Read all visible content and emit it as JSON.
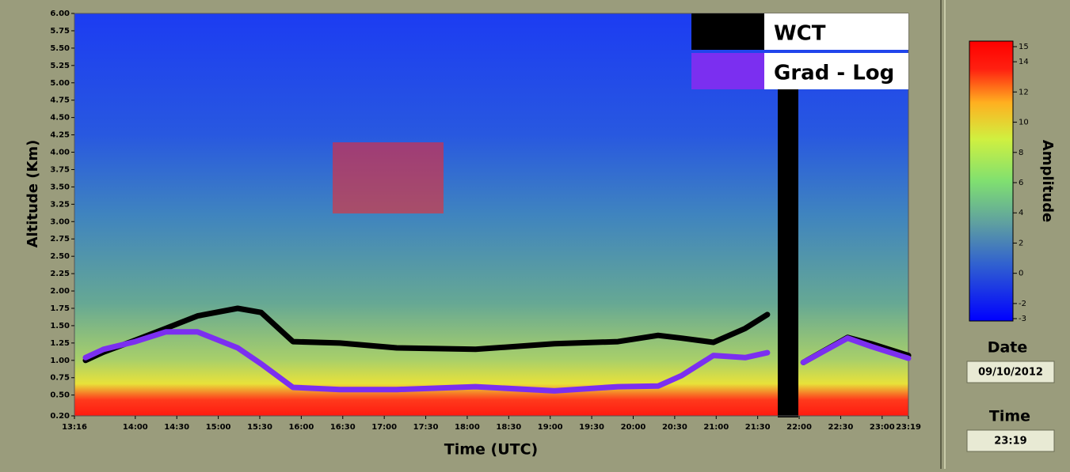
{
  "chart_data": {
    "type": "line",
    "xlabel": "Time (UTC)",
    "ylabel": "Altitude (Km)",
    "xlim": [
      796,
      1399
    ],
    "xticks": [
      {
        "value": 796,
        "label": "13:16"
      },
      {
        "value": 840,
        "label": "14:00"
      },
      {
        "value": 870,
        "label": "14:30"
      },
      {
        "value": 900,
        "label": "15:00"
      },
      {
        "value": 930,
        "label": "15:30"
      },
      {
        "value": 960,
        "label": "16:00"
      },
      {
        "value": 990,
        "label": "16:30"
      },
      {
        "value": 1020,
        "label": "17:00"
      },
      {
        "value": 1050,
        "label": "17:30"
      },
      {
        "value": 1080,
        "label": "18:00"
      },
      {
        "value": 1110,
        "label": "18:30"
      },
      {
        "value": 1140,
        "label": "19:00"
      },
      {
        "value": 1170,
        "label": "19:30"
      },
      {
        "value": 1200,
        "label": "20:00"
      },
      {
        "value": 1230,
        "label": "20:30"
      },
      {
        "value": 1260,
        "label": "21:00"
      },
      {
        "value": 1290,
        "label": "21:30"
      },
      {
        "value": 1320,
        "label": "22:00"
      },
      {
        "value": 1350,
        "label": "22:30"
      },
      {
        "value": 1380,
        "label": "23:00"
      },
      {
        "value": 1399,
        "label": "23:19"
      }
    ],
    "ylim": [
      0.2,
      6.0
    ],
    "yticks": [
      {
        "value": 0.2,
        "label": "0.20"
      },
      {
        "value": 0.5,
        "label": "0.50"
      },
      {
        "value": 0.75,
        "label": "0.75"
      },
      {
        "value": 1,
        "label": "1.00"
      },
      {
        "value": 1.25,
        "label": "1.25"
      },
      {
        "value": 1.5,
        "label": "1.50"
      },
      {
        "value": 1.75,
        "label": "1.75"
      },
      {
        "value": 2,
        "label": "2.00"
      },
      {
        "value": 2.25,
        "label": "2.25"
      },
      {
        "value": 2.5,
        "label": "2.50"
      },
      {
        "value": 2.75,
        "label": "2.75"
      },
      {
        "value": 3,
        "label": "3.00"
      },
      {
        "value": 3.25,
        "label": "3.25"
      },
      {
        "value": 3.5,
        "label": "3.50"
      },
      {
        "value": 3.75,
        "label": "3.75"
      },
      {
        "value": 4,
        "label": "4.00"
      },
      {
        "value": 4.25,
        "label": "4.25"
      },
      {
        "value": 4.5,
        "label": "4.50"
      },
      {
        "value": 4.75,
        "label": "4.75"
      },
      {
        "value": 5,
        "label": "5.00"
      },
      {
        "value": 5.25,
        "label": "5.25"
      },
      {
        "value": 5.5,
        "label": "5.50"
      },
      {
        "value": 5.75,
        "label": "5.75"
      },
      {
        "value": 6,
        "label": "6.00"
      }
    ],
    "x": [
      804,
      817,
      840,
      862,
      885,
      914,
      931,
      954,
      988,
      1029,
      1086,
      1143,
      1189,
      1218,
      1235,
      1258,
      1281,
      1297,
      1310,
      1323,
      1355,
      1372,
      1399
    ],
    "series": [
      {
        "name": "WCT",
        "color": "#000000",
        "values": [
          1.0,
          1.12,
          1.29,
          1.46,
          1.64,
          1.75,
          1.69,
          1.27,
          1.25,
          1.18,
          1.16,
          1.24,
          1.27,
          1.36,
          1.32,
          1.26,
          1.46,
          1.66,
          null,
          0.97,
          1.33,
          1.24,
          1.07
        ]
      },
      {
        "name": "Grad - Log",
        "color": "#7b2ff0",
        "values": [
          1.04,
          1.16,
          1.27,
          1.41,
          1.41,
          1.18,
          0.95,
          0.61,
          0.58,
          0.58,
          0.62,
          0.56,
          0.62,
          0.63,
          0.78,
          1.07,
          1.04,
          1.11,
          null,
          0.97,
          1.32,
          1.2,
          1.03
        ]
      }
    ],
    "colorbar": {
      "label": "Amplitude",
      "lim": [
        -3,
        15
      ],
      "ticks": [
        -3,
        -2,
        0,
        2,
        4,
        6,
        8,
        10,
        12,
        14,
        15
      ]
    }
  },
  "panel": {
    "date_label": "Date",
    "date_value": "09/10/2012",
    "time_label": "Time",
    "time_value": "23:19"
  }
}
